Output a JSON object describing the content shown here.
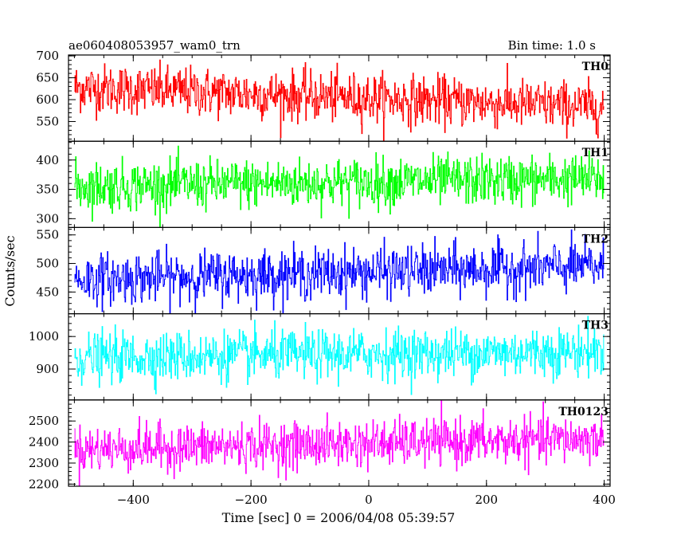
{
  "header": {
    "title": "ae060408053957_wam0_trn",
    "bin_time": "Bin time: 1.0 s"
  },
  "chart_data": {
    "type": "line",
    "xlabel": "Time [sec] 0 = 2006/04/08 05:39:57",
    "ylabel": "Counts/sec",
    "xlim": [
      -510,
      410
    ],
    "x_ticks": [
      -400,
      -200,
      0,
      200,
      400
    ],
    "x_tick_labels": [
      "−400",
      "−200",
      "0",
      "200",
      "400"
    ],
    "x_data_range": [
      -500,
      399
    ],
    "panels": [
      {
        "label": "TH0",
        "color": "#ff0000",
        "ylim": [
          505,
          702
        ],
        "y_ticks": [
          550,
          600,
          650,
          700
        ],
        "y_tick_labels": [
          "550",
          "600",
          "650",
          "700"
        ],
        "mean_start": 628,
        "mean_end": 583,
        "noise_sd": 28
      },
      {
        "label": "TH1",
        "color": "#00ff00",
        "ylim": [
          285,
          432
        ],
        "y_ticks": [
          300,
          350,
          400
        ],
        "y_tick_labels": [
          "300",
          "350",
          "400"
        ],
        "mean_start": 355,
        "mean_end": 368,
        "noise_sd": 21
      },
      {
        "label": "TH2",
        "color": "#0000ff",
        "ylim": [
          412,
          563
        ],
        "y_ticks": [
          450,
          500,
          550
        ],
        "y_tick_labels": [
          "450",
          "500",
          "550"
        ],
        "mean_start": 472,
        "mean_end": 495,
        "noise_sd": 22
      },
      {
        "label": "TH3",
        "color": "#00ffff",
        "ylim": [
          805,
          1070
        ],
        "y_ticks": [
          900,
          1000
        ],
        "y_tick_labels": [
          "900",
          "1000"
        ],
        "mean_start": 935,
        "mean_end": 955,
        "noise_sd": 38
      },
      {
        "label": "TH0123",
        "color": "#ff00ff",
        "ylim": [
          2190,
          2600
        ],
        "y_ticks": [
          2200,
          2300,
          2400,
          2500
        ],
        "y_tick_labels": [
          "2200",
          "2300",
          "2400",
          "2500"
        ],
        "mean_start": 2365,
        "mean_end": 2415,
        "noise_sd": 55
      }
    ]
  }
}
